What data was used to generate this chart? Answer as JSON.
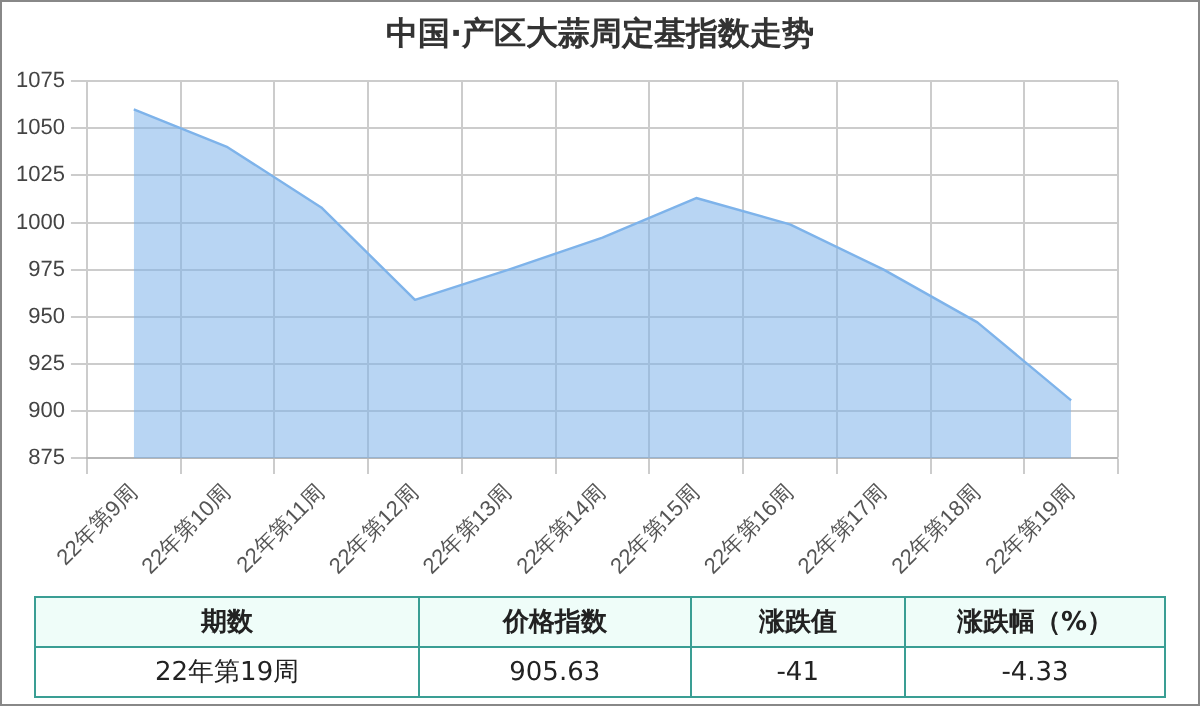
{
  "chart_data": {
    "type": "area",
    "title": "中国·产区大蒜周定基指数走势",
    "categories": [
      "22年第9周",
      "22年第10周",
      "22年第11周",
      "22年第12周",
      "22年第13周",
      "22年第14周",
      "22年第15周",
      "22年第16周",
      "22年第17周",
      "22年第18周",
      "22年第19周"
    ],
    "series": [
      {
        "color": "#7eb3ea",
        "values": [
          1060,
          1040,
          1008,
          959,
          975,
          992,
          1013,
          999,
          975,
          947,
          905.63
        ]
      }
    ],
    "ylim": [
      875,
      1075
    ],
    "yticks": [
      875,
      900,
      925,
      950,
      975,
      1000,
      1025,
      1050,
      1075
    ],
    "grid": true,
    "annotations": [
      "期数",
      "价格指数",
      "涨跌值",
      "涨跌幅（%）",
      "22年第19周",
      "905.63",
      "-41",
      "-4.33"
    ]
  }
}
